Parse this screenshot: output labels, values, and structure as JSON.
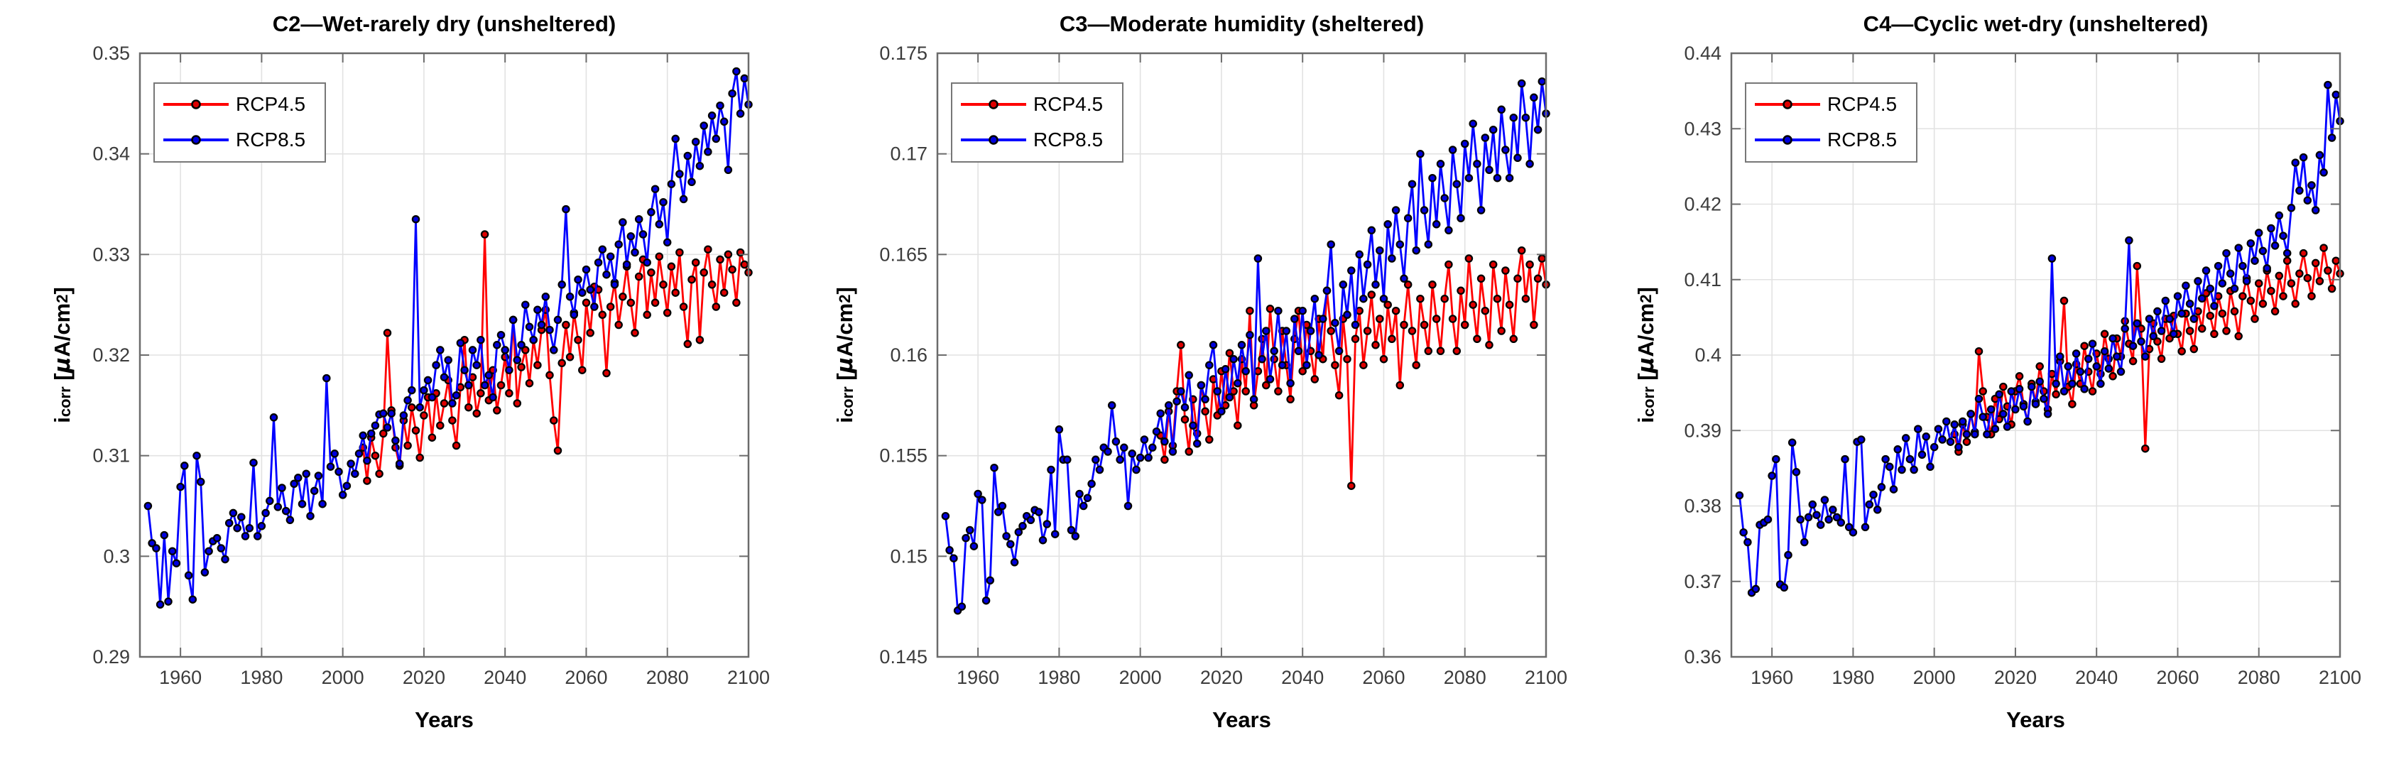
{
  "figure": {
    "background": "#ffffff"
  },
  "labels": {
    "x": "Years",
    "y_base": "i",
    "y_sub": "corr",
    "y_unit_open": " [",
    "y_mu": "μ",
    "y_unit_body": "A/cm",
    "y_sup": "2",
    "y_unit_close": "]"
  },
  "style": {
    "grid_color": "#e2e2e2",
    "spine_color": "#6b6b6b",
    "tick_label_color": "#3c3c3c",
    "rcp45_color": "#ff0000",
    "rcp45_marker": "#dd0000",
    "rcp85_color": "#0000ff",
    "rcp85_marker": "#0000dd",
    "marker_edge": "#000000"
  },
  "chart_data": [
    {
      "type": "line",
      "title": "C2—Wet-rarely dry (unsheltered)",
      "xlabel": "Years",
      "ylabel": "i_corr [uA/cm2]",
      "xlim": [
        1950,
        2100
      ],
      "ylim": [
        0.29,
        0.35
      ],
      "xticks": [
        1960,
        1980,
        2000,
        2020,
        2040,
        2060,
        2080,
        2100
      ],
      "yticks": [
        0.29,
        0.3,
        0.31,
        0.32,
        0.33,
        0.34,
        0.35
      ],
      "ytick_labels": [
        "0.29",
        "0.3",
        "0.31",
        "0.32",
        "0.33",
        "0.34",
        "0.35"
      ],
      "grid": true,
      "legend_position": "upper-left",
      "series": [
        {
          "name": "RCP4.5",
          "start_year": 2005,
          "step": 1,
          "values": [
            0.3108,
            0.3075,
            0.3118,
            0.31,
            0.3082,
            0.3122,
            0.3222,
            0.3145,
            0.3108,
            0.309,
            0.3135,
            0.311,
            0.3148,
            0.3125,
            0.3098,
            0.314,
            0.3158,
            0.3118,
            0.3162,
            0.313,
            0.3152,
            0.3175,
            0.3135,
            0.311,
            0.3168,
            0.3215,
            0.3148,
            0.3178,
            0.3142,
            0.3162,
            0.332,
            0.3155,
            0.3185,
            0.3145,
            0.317,
            0.3198,
            0.3162,
            0.3235,
            0.3152,
            0.3188,
            0.3205,
            0.3172,
            0.3215,
            0.319,
            0.3225,
            0.3245,
            0.318,
            0.3135,
            0.3105,
            0.3192,
            0.323,
            0.3198,
            0.3242,
            0.3215,
            0.3185,
            0.3252,
            0.3222,
            0.3268,
            0.3265,
            0.324,
            0.3182,
            0.3248,
            0.3272,
            0.323,
            0.3258,
            0.3288,
            0.3252,
            0.3222,
            0.3278,
            0.3295,
            0.324,
            0.3282,
            0.3252,
            0.3298,
            0.327,
            0.3242,
            0.3288,
            0.3262,
            0.3302,
            0.3248,
            0.3211,
            0.3275,
            0.3292,
            0.3215,
            0.3282,
            0.3305,
            0.327,
            0.3248,
            0.3295,
            0.3262,
            0.33,
            0.3285,
            0.3252,
            0.3302,
            0.329,
            0.3282
          ]
        },
        {
          "name": "RCP8.5",
          "start_year": 1952,
          "step": 1,
          "values": [
            0.305,
            0.3013,
            0.3008,
            0.2952,
            0.3021,
            0.2955,
            0.3005,
            0.2993,
            0.3069,
            0.309,
            0.2981,
            0.2957,
            0.31,
            0.3074,
            0.2984,
            0.3005,
            0.3015,
            0.3018,
            0.3008,
            0.2997,
            0.3033,
            0.3043,
            0.3028,
            0.3039,
            0.302,
            0.3028,
            0.3093,
            0.302,
            0.303,
            0.3043,
            0.3055,
            0.3138,
            0.3049,
            0.3068,
            0.3045,
            0.3036,
            0.3072,
            0.3078,
            0.3052,
            0.3082,
            0.304,
            0.3065,
            0.308,
            0.3052,
            0.3177,
            0.3089,
            0.3102,
            0.3084,
            0.3061,
            0.307,
            0.3092,
            0.3082,
            0.3102,
            0.312,
            0.3095,
            0.3122,
            0.313,
            0.3141,
            0.3142,
            0.3128,
            0.3142,
            0.3115,
            0.3092,
            0.314,
            0.3155,
            0.3165,
            0.3335,
            0.3148,
            0.3165,
            0.3175,
            0.3158,
            0.319,
            0.3205,
            0.3178,
            0.3195,
            0.3152,
            0.316,
            0.3212,
            0.3185,
            0.317,
            0.3205,
            0.319,
            0.3215,
            0.317,
            0.318,
            0.3158,
            0.321,
            0.322,
            0.3205,
            0.3185,
            0.3235,
            0.3195,
            0.321,
            0.325,
            0.3228,
            0.3215,
            0.3245,
            0.323,
            0.3258,
            0.3225,
            0.3205,
            0.3235,
            0.327,
            0.3345,
            0.3258,
            0.324,
            0.3275,
            0.3262,
            0.3285,
            0.3265,
            0.3248,
            0.3292,
            0.3305,
            0.328,
            0.3298,
            0.327,
            0.331,
            0.3332,
            0.329,
            0.3318,
            0.3302,
            0.3335,
            0.332,
            0.3292,
            0.3342,
            0.3365,
            0.333,
            0.3352,
            0.3312,
            0.337,
            0.3415,
            0.338,
            0.3355,
            0.3398,
            0.3372,
            0.3412,
            0.3388,
            0.3428,
            0.3402,
            0.3438,
            0.3415,
            0.3448,
            0.3432,
            0.3384,
            0.346,
            0.3482,
            0.344,
            0.3475,
            0.3449
          ]
        }
      ]
    },
    {
      "type": "line",
      "title": "C3—Moderate humidity (sheltered)",
      "xlabel": "Years",
      "ylabel": "i_corr [uA/cm2]",
      "xlim": [
        1950,
        2100
      ],
      "ylim": [
        0.145,
        0.175
      ],
      "xticks": [
        1960,
        1980,
        2000,
        2020,
        2040,
        2060,
        2080,
        2100
      ],
      "yticks": [
        0.145,
        0.15,
        0.155,
        0.16,
        0.165,
        0.17,
        0.175
      ],
      "ytick_labels": [
        "0.145",
        "0.15",
        "0.155",
        "0.16",
        "0.165",
        "0.17",
        "0.175"
      ],
      "grid": true,
      "legend_position": "upper-left",
      "series": [
        {
          "name": "RCP4.5",
          "start_year": 2005,
          "step": 1,
          "values": [
            0.156,
            0.1548,
            0.1572,
            0.1555,
            0.1582,
            0.1605,
            0.1568,
            0.1552,
            0.1578,
            0.1561,
            0.1585,
            0.1572,
            0.1558,
            0.1588,
            0.157,
            0.1592,
            0.1575,
            0.1601,
            0.1582,
            0.1565,
            0.1598,
            0.1582,
            0.1622,
            0.1575,
            0.1592,
            0.1608,
            0.1585,
            0.1623,
            0.1598,
            0.1582,
            0.1612,
            0.1595,
            0.1578,
            0.1608,
            0.1622,
            0.1592,
            0.1615,
            0.1602,
            0.1588,
            0.1618,
            0.1598,
            0.1632,
            0.1612,
            0.1595,
            0.158,
            0.1618,
            0.1598,
            0.1535,
            0.1608,
            0.1622,
            0.1595,
            0.1612,
            0.163,
            0.1605,
            0.1618,
            0.1598,
            0.1625,
            0.1608,
            0.1622,
            0.1585,
            0.1615,
            0.1635,
            0.1612,
            0.1595,
            0.1628,
            0.1615,
            0.1602,
            0.1635,
            0.1618,
            0.1602,
            0.1628,
            0.1645,
            0.1618,
            0.1602,
            0.1632,
            0.1615,
            0.1648,
            0.1625,
            0.1608,
            0.1638,
            0.1622,
            0.1605,
            0.1645,
            0.1628,
            0.1612,
            0.1642,
            0.1625,
            0.1608,
            0.1638,
            0.1652,
            0.1628,
            0.1645,
            0.1615,
            0.1638,
            0.1648,
            0.1635
          ]
        },
        {
          "name": "RCP8.5",
          "start_year": 1952,
          "step": 1,
          "values": [
            0.152,
            0.1503,
            0.1499,
            0.1473,
            0.1475,
            0.1509,
            0.1513,
            0.1505,
            0.1531,
            0.1528,
            0.1478,
            0.1488,
            0.1544,
            0.1522,
            0.1525,
            0.151,
            0.1506,
            0.1497,
            0.1512,
            0.1515,
            0.152,
            0.1518,
            0.1523,
            0.1522,
            0.1508,
            0.1516,
            0.1543,
            0.1511,
            0.1563,
            0.1548,
            0.1548,
            0.1513,
            0.151,
            0.1531,
            0.1525,
            0.1529,
            0.1536,
            0.1548,
            0.1543,
            0.1554,
            0.1552,
            0.1575,
            0.1557,
            0.1548,
            0.1554,
            0.1525,
            0.1551,
            0.1543,
            0.1549,
            0.1558,
            0.1549,
            0.1554,
            0.1562,
            0.1571,
            0.1557,
            0.1575,
            0.1552,
            0.1577,
            0.1582,
            0.1574,
            0.159,
            0.1565,
            0.1556,
            0.1585,
            0.1578,
            0.1595,
            0.1605,
            0.1582,
            0.1572,
            0.1593,
            0.1579,
            0.1598,
            0.1586,
            0.1605,
            0.1592,
            0.161,
            0.1578,
            0.1648,
            0.1598,
            0.1612,
            0.1588,
            0.1602,
            0.1622,
            0.1595,
            0.1612,
            0.1586,
            0.1618,
            0.1602,
            0.1622,
            0.1595,
            0.1612,
            0.1628,
            0.16,
            0.1618,
            0.1632,
            0.1655,
            0.1616,
            0.1602,
            0.1635,
            0.162,
            0.1642,
            0.1615,
            0.165,
            0.1628,
            0.1645,
            0.1662,
            0.1635,
            0.1652,
            0.1628,
            0.1665,
            0.1648,
            0.1672,
            0.1655,
            0.1638,
            0.1668,
            0.1685,
            0.1652,
            0.17,
            0.1672,
            0.1655,
            0.1688,
            0.1665,
            0.1695,
            0.1678,
            0.1662,
            0.1702,
            0.1685,
            0.1668,
            0.1705,
            0.1688,
            0.1715,
            0.1695,
            0.1672,
            0.1708,
            0.1692,
            0.1712,
            0.1688,
            0.1722,
            0.1702,
            0.1688,
            0.1718,
            0.1698,
            0.1735,
            0.1718,
            0.1695,
            0.1728,
            0.1712,
            0.1736,
            0.172
          ]
        }
      ]
    },
    {
      "type": "line",
      "title": "C4—Cyclic wet-dry (unsheltered)",
      "xlabel": "Years",
      "ylabel": "i_corr [uA/cm2]",
      "xlim": [
        1950,
        2100
      ],
      "ylim": [
        0.36,
        0.44
      ],
      "xticks": [
        1960,
        1980,
        2000,
        2020,
        2040,
        2060,
        2080,
        2100
      ],
      "yticks": [
        0.36,
        0.37,
        0.38,
        0.39,
        0.4,
        0.41,
        0.42,
        0.43,
        0.44
      ],
      "ytick_labels": [
        "0.36",
        "0.37",
        "0.38",
        "0.39",
        "0.4",
        "0.41",
        "0.42",
        "0.43",
        "0.44"
      ],
      "grid": true,
      "legend_position": "upper-left",
      "series": [
        {
          "name": "RCP4.5",
          "start_year": 2005,
          "step": 1,
          "values": [
            0.3895,
            0.3872,
            0.3908,
            0.3885,
            0.3922,
            0.3898,
            0.4005,
            0.3952,
            0.3918,
            0.3895,
            0.3942,
            0.3915,
            0.3958,
            0.3932,
            0.3908,
            0.3952,
            0.3972,
            0.3935,
            0.3912,
            0.3962,
            0.3938,
            0.3985,
            0.3952,
            0.3928,
            0.3975,
            0.3948,
            0.3992,
            0.4072,
            0.3958,
            0.3935,
            0.3988,
            0.3962,
            0.4012,
            0.3978,
            0.3952,
            0.4002,
            0.3975,
            0.4028,
            0.3995,
            0.3972,
            0.4022,
            0.3998,
            0.4045,
            0.4015,
            0.3992,
            0.4118,
            0.4035,
            0.3876,
            0.4008,
            0.4042,
            0.4018,
            0.3995,
            0.4048,
            0.4022,
            0.4052,
            0.4028,
            0.4005,
            0.4055,
            0.4032,
            0.4008,
            0.4058,
            0.4035,
            0.4082,
            0.4052,
            0.4028,
            0.4078,
            0.4055,
            0.4032,
            0.4085,
            0.4058,
            0.4025,
            0.4078,
            0.4102,
            0.4072,
            0.4048,
            0.4095,
            0.4068,
            0.4112,
            0.4085,
            0.4058,
            0.4105,
            0.4078,
            0.4125,
            0.4095,
            0.4068,
            0.4108,
            0.4135,
            0.4102,
            0.4078,
            0.4122,
            0.4098,
            0.4142,
            0.4112,
            0.4088,
            0.4125,
            0.4108
          ]
        },
        {
          "name": "RCP8.5",
          "start_year": 1952,
          "step": 1,
          "values": [
            0.3814,
            0.3765,
            0.3752,
            0.3685,
            0.369,
            0.3775,
            0.3778,
            0.3782,
            0.384,
            0.3862,
            0.3696,
            0.3692,
            0.3735,
            0.3884,
            0.3845,
            0.3782,
            0.3752,
            0.3785,
            0.3802,
            0.3788,
            0.3775,
            0.3808,
            0.3782,
            0.3795,
            0.3785,
            0.3778,
            0.3862,
            0.3772,
            0.3765,
            0.3885,
            0.3888,
            0.3772,
            0.3802,
            0.3815,
            0.3795,
            0.3825,
            0.3862,
            0.3852,
            0.3822,
            0.3875,
            0.3848,
            0.389,
            0.3862,
            0.3848,
            0.3902,
            0.3868,
            0.3892,
            0.3852,
            0.3878,
            0.3902,
            0.3888,
            0.3912,
            0.3885,
            0.3908,
            0.3878,
            0.3912,
            0.3895,
            0.3922,
            0.3895,
            0.3942,
            0.3918,
            0.3895,
            0.3928,
            0.3902,
            0.3948,
            0.3922,
            0.3905,
            0.3952,
            0.3928,
            0.3955,
            0.3932,
            0.3912,
            0.3958,
            0.3935,
            0.3965,
            0.3942,
            0.3922,
            0.4128,
            0.3962,
            0.3998,
            0.3952,
            0.3985,
            0.3962,
            0.4002,
            0.3978,
            0.3955,
            0.3995,
            0.4015,
            0.3985,
            0.3962,
            0.4005,
            0.3982,
            0.4022,
            0.3998,
            0.3978,
            0.4035,
            0.4152,
            0.4012,
            0.4042,
            0.4018,
            0.3998,
            0.4048,
            0.4025,
            0.4058,
            0.4032,
            0.4072,
            0.4048,
            0.4028,
            0.4078,
            0.4055,
            0.4092,
            0.4068,
            0.4048,
            0.4098,
            0.4075,
            0.4112,
            0.4088,
            0.4065,
            0.4118,
            0.4095,
            0.4135,
            0.4108,
            0.4088,
            0.4142,
            0.4118,
            0.4098,
            0.4148,
            0.4125,
            0.4162,
            0.4138,
            0.4115,
            0.4168,
            0.4145,
            0.4185,
            0.4158,
            0.4135,
            0.4195,
            0.4255,
            0.4218,
            0.4262,
            0.4205,
            0.4225,
            0.4192,
            0.4265,
            0.4242,
            0.4358,
            0.4288,
            0.4345,
            0.431
          ]
        }
      ]
    }
  ]
}
